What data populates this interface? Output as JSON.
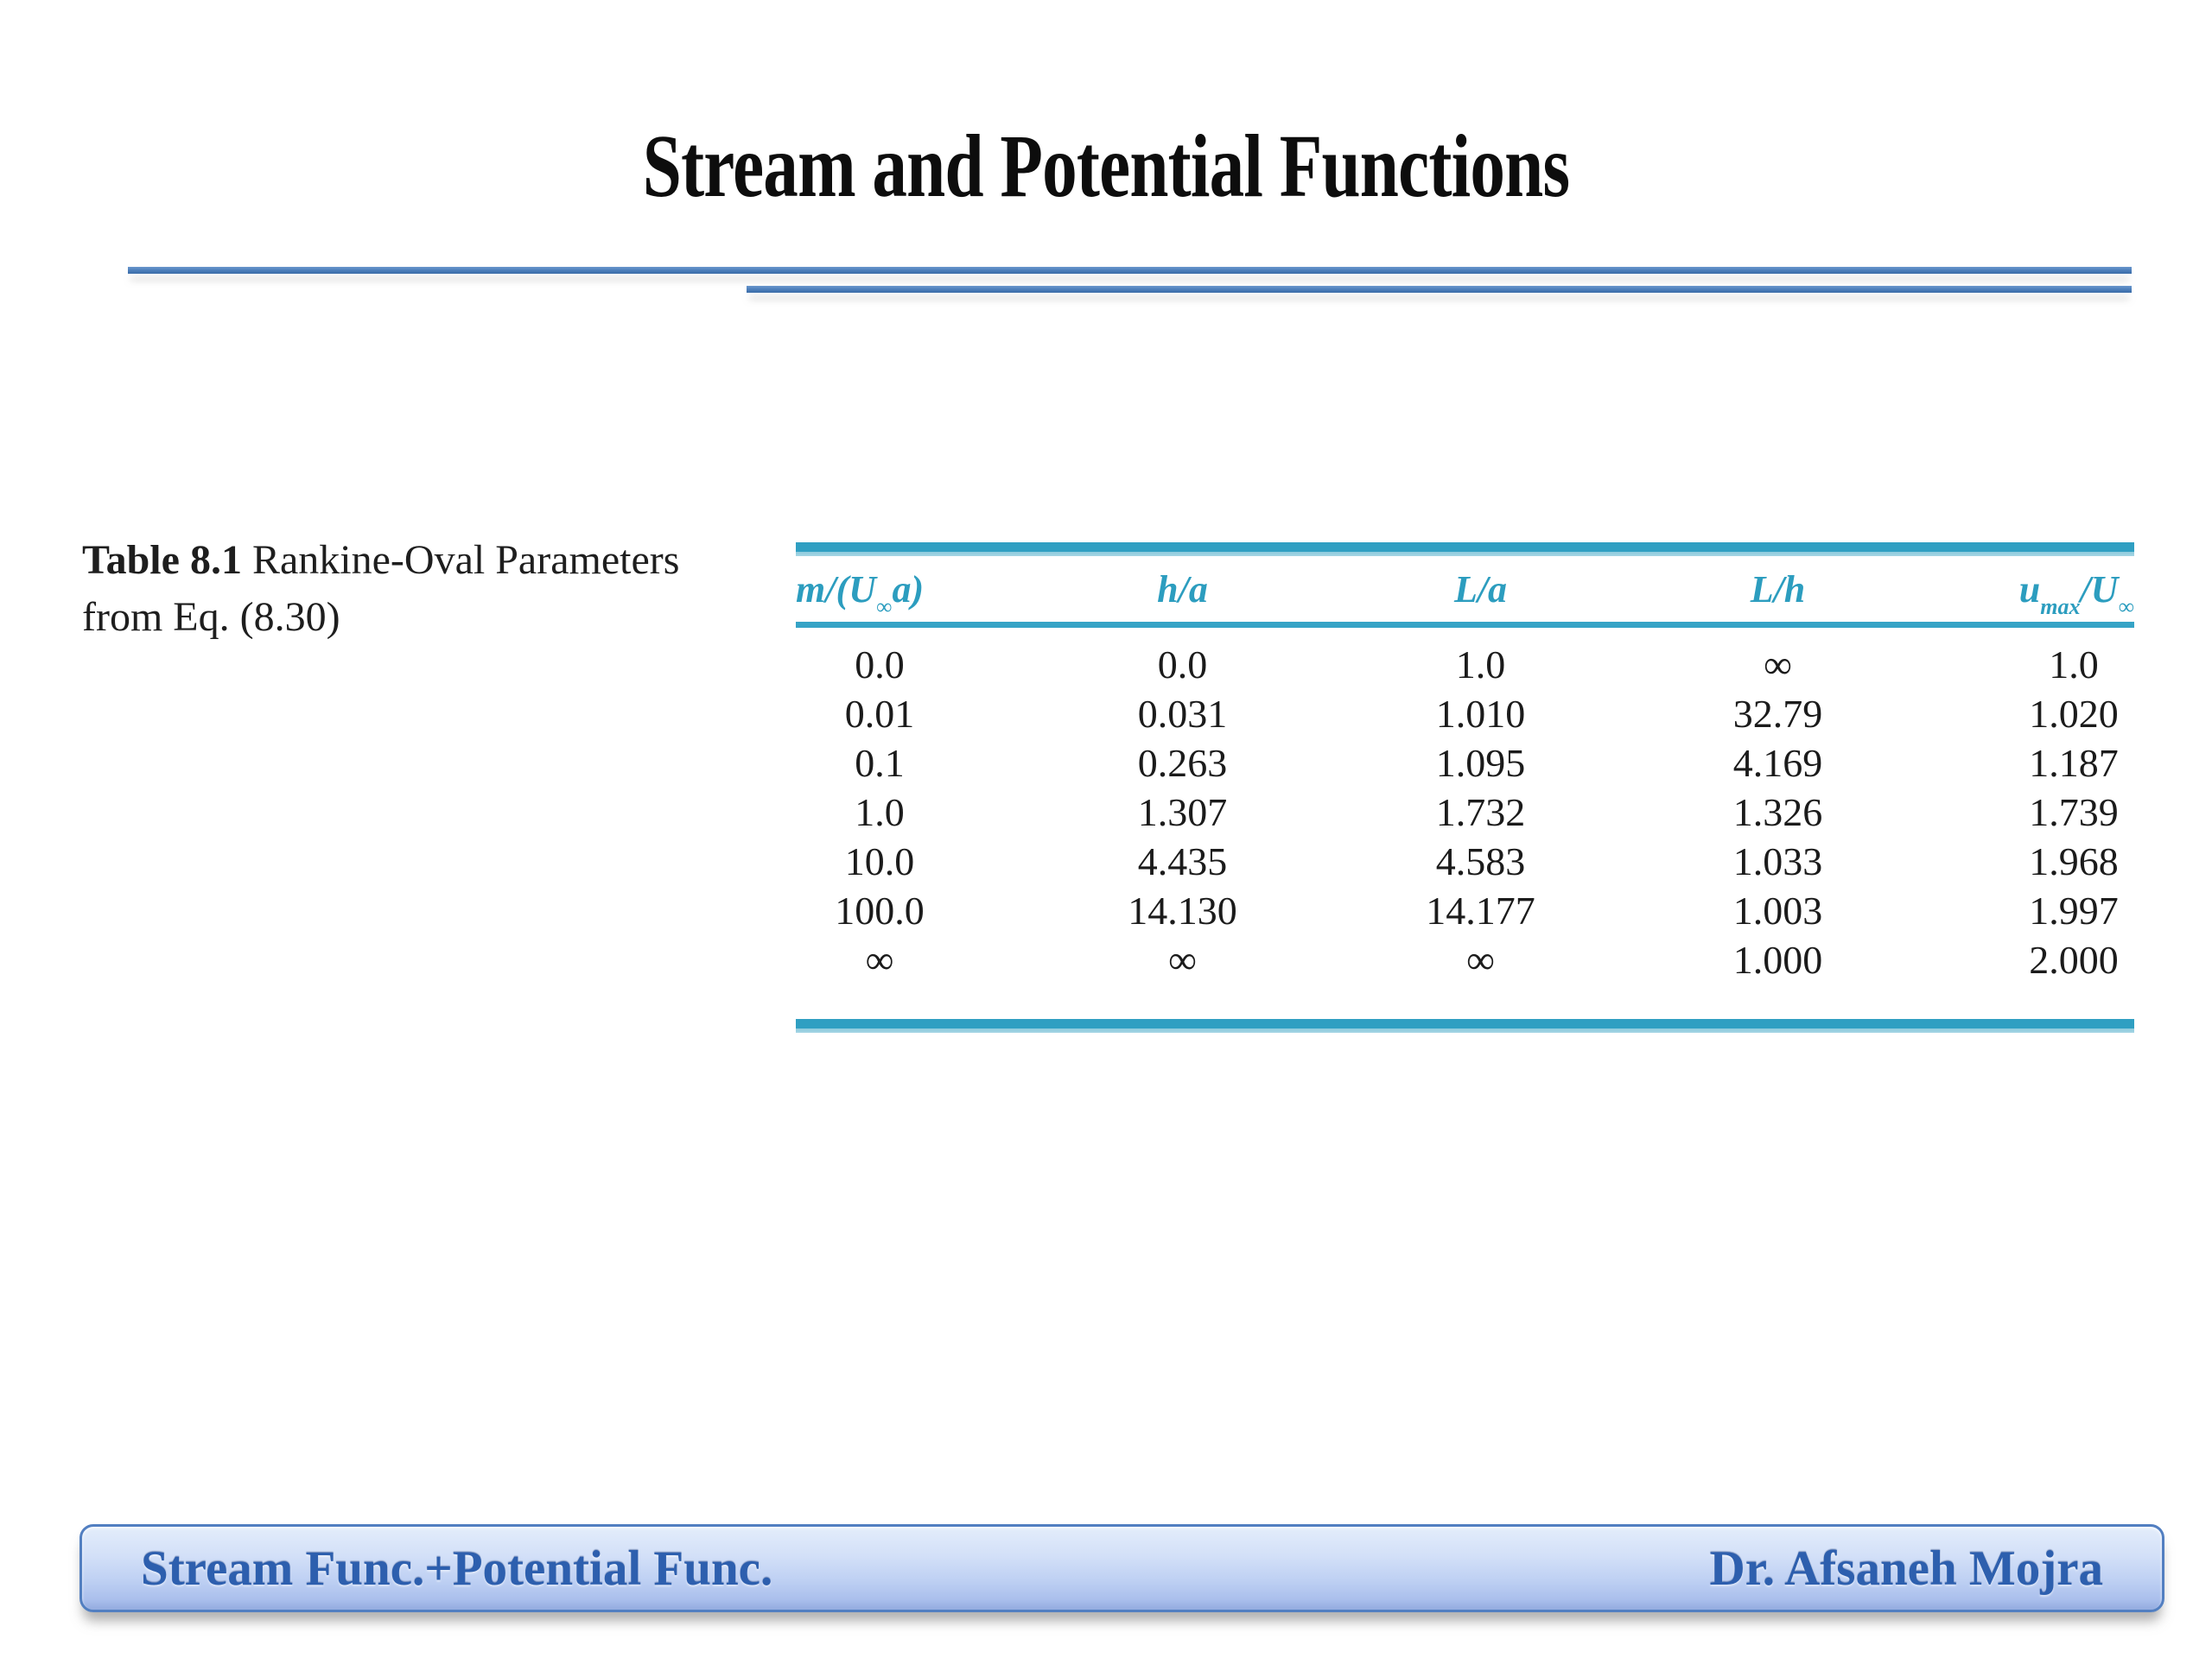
{
  "slide": {
    "title": "Stream and Potential Functions"
  },
  "caption": {
    "label": "Table 8.1",
    "line1_rest": " Rankine-Oval Parameters",
    "line2": "from Eq. (8.30)"
  },
  "table": {
    "headers": [
      {
        "t0": "m/(U",
        "s0": "∞",
        "t1": "a)"
      },
      {
        "t0": "h/a"
      },
      {
        "t0": "L/a"
      },
      {
        "t0": "L/h"
      },
      {
        "t0": "u",
        "s0": "max",
        "t1": "/U",
        "s1": "∞"
      }
    ],
    "rows": [
      [
        "0.0",
        "0.0",
        "1.0",
        "∞",
        "1.0"
      ],
      [
        "0.01",
        "0.031",
        "1.010",
        "32.79",
        "1.020"
      ],
      [
        "0.1",
        "0.263",
        "1.095",
        "4.169",
        "1.187"
      ],
      [
        "1.0",
        "1.307",
        "1.732",
        "1.326",
        "1.739"
      ],
      [
        "10.0",
        "4.435",
        "4.583",
        "1.033",
        "1.968"
      ],
      [
        "100.0",
        "14.130",
        "14.177",
        "1.003",
        "1.997"
      ],
      [
        "∞",
        "∞",
        "∞",
        "1.000",
        "2.000"
      ]
    ]
  },
  "footer": {
    "left": "Stream Func.+Potential Func.",
    "right": "Dr. Afsaneh Mojra"
  },
  "colors": {
    "table_rule_teal": "#2f9fc2",
    "table_header_text": "#2c9dbf",
    "divider_blue": "#4f81bd",
    "footer_border": "#527fc1",
    "footer_text": "#2d5fae"
  }
}
